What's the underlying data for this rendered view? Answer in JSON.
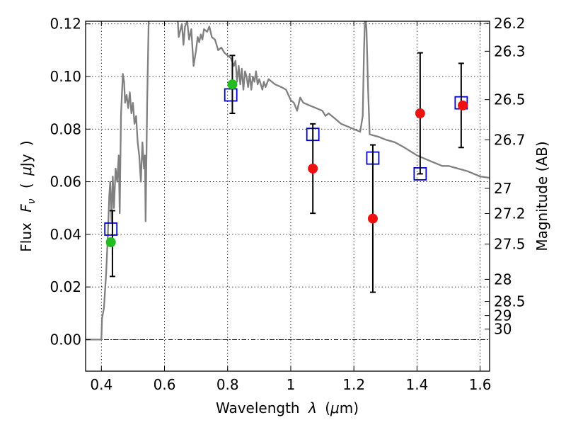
{
  "chart_data": {
    "type": "scatter",
    "xlabel_text": "Wavelength",
    "xlabel_symbol": "λ",
    "xlabel_unit_open": "(",
    "xlabel_unit_mu": "μ",
    "xlabel_unit_rest": "m)",
    "ylabel_prefix": "Flux",
    "ylabel_symbol": "F",
    "ylabel_subscript": "ν",
    "ylabel_open": "(",
    "ylabel_mu": "μ",
    "ylabel_unit": "Jy",
    "ylabel_close": ")",
    "y2label": "Magnitude (AB)",
    "xlim": [
      0.35,
      1.63
    ],
    "ylim": [
      -0.012,
      0.121
    ],
    "x_ticks": [
      {
        "value": 0.4,
        "label": "0.4"
      },
      {
        "value": 0.6,
        "label": "0.6"
      },
      {
        "value": 0.8,
        "label": "0.8"
      },
      {
        "value": 1.0,
        "label": "1"
      },
      {
        "value": 1.2,
        "label": "1.2"
      },
      {
        "value": 1.4,
        "label": "1.4"
      },
      {
        "value": 1.6,
        "label": "1.6"
      }
    ],
    "y_ticks": [
      {
        "value": 0.0,
        "label": "0.00"
      },
      {
        "value": 0.02,
        "label": "0.02"
      },
      {
        "value": 0.04,
        "label": "0.04"
      },
      {
        "value": 0.06,
        "label": "0.06"
      },
      {
        "value": 0.08,
        "label": "0.08"
      },
      {
        "value": 0.1,
        "label": "0.10"
      },
      {
        "value": 0.12,
        "label": "0.12"
      }
    ],
    "y2_ticks": [
      {
        "flux": 0.1202,
        "label": "26.2"
      },
      {
        "flux": 0.1096,
        "label": "26.3"
      },
      {
        "flux": 0.0912,
        "label": "26.5"
      },
      {
        "flux": 0.0759,
        "label": "26.7"
      },
      {
        "flux": 0.0575,
        "label": "27"
      },
      {
        "flux": 0.0479,
        "label": "27.2"
      },
      {
        "flux": 0.0363,
        "label": "27.5"
      },
      {
        "flux": 0.0229,
        "label": "28"
      },
      {
        "flux": 0.0145,
        "label": "28.5"
      },
      {
        "flux": 0.0091,
        "label": "29"
      },
      {
        "flux": 0.004,
        "label": "30"
      }
    ],
    "grid": true,
    "series": [
      {
        "kind": "line",
        "color": "#808080",
        "points": [
          [
            0.35,
            0.0
          ],
          [
            0.4,
            0.0
          ],
          [
            0.402,
            0.008
          ],
          [
            0.408,
            0.012
          ],
          [
            0.415,
            0.025
          ],
          [
            0.42,
            0.038
          ],
          [
            0.425,
            0.055
          ],
          [
            0.428,
            0.06
          ],
          [
            0.432,
            0.045
          ],
          [
            0.436,
            0.062
          ],
          [
            0.44,
            0.05
          ],
          [
            0.445,
            0.065
          ],
          [
            0.45,
            0.06
          ],
          [
            0.455,
            0.07
          ],
          [
            0.458,
            0.048
          ],
          [
            0.462,
            0.085
          ],
          [
            0.468,
            0.101
          ],
          [
            0.472,
            0.098
          ],
          [
            0.475,
            0.09
          ],
          [
            0.48,
            0.093
          ],
          [
            0.485,
            0.088
          ],
          [
            0.49,
            0.094
          ],
          [
            0.495,
            0.086
          ],
          [
            0.5,
            0.09
          ],
          [
            0.505,
            0.082
          ],
          [
            0.51,
            0.085
          ],
          [
            0.515,
            0.075
          ],
          [
            0.52,
            0.07
          ],
          [
            0.525,
            0.06
          ],
          [
            0.53,
            0.075
          ],
          [
            0.535,
            0.065
          ],
          [
            0.538,
            0.07
          ],
          [
            0.54,
            0.045
          ],
          [
            0.545,
            0.09
          ],
          [
            0.55,
            0.122
          ],
          [
            0.6,
            0.128
          ],
          [
            0.64,
            0.125
          ],
          [
            0.645,
            0.115
          ],
          [
            0.655,
            0.12
          ],
          [
            0.66,
            0.112
          ],
          [
            0.665,
            0.119
          ],
          [
            0.672,
            0.121
          ],
          [
            0.678,
            0.114
          ],
          [
            0.685,
            0.118
          ],
          [
            0.692,
            0.104
          ],
          [
            0.7,
            0.11
          ],
          [
            0.705,
            0.115
          ],
          [
            0.71,
            0.113
          ],
          [
            0.715,
            0.116
          ],
          [
            0.72,
            0.114
          ],
          [
            0.725,
            0.118
          ],
          [
            0.735,
            0.117
          ],
          [
            0.742,
            0.119
          ],
          [
            0.75,
            0.115
          ],
          [
            0.76,
            0.114
          ],
          [
            0.77,
            0.11
          ],
          [
            0.78,
            0.111
          ],
          [
            0.79,
            0.109
          ],
          [
            0.8,
            0.108
          ],
          [
            0.81,
            0.107
          ],
          [
            0.82,
            0.104
          ],
          [
            0.825,
            0.106
          ],
          [
            0.83,
            0.098
          ],
          [
            0.835,
            0.104
          ],
          [
            0.84,
            0.097
          ],
          [
            0.845,
            0.103
          ],
          [
            0.85,
            0.095
          ],
          [
            0.855,
            0.102
          ],
          [
            0.86,
            0.1
          ],
          [
            0.865,
            0.096
          ],
          [
            0.87,
            0.101
          ],
          [
            0.875,
            0.095
          ],
          [
            0.88,
            0.1
          ],
          [
            0.885,
            0.098
          ],
          [
            0.89,
            0.102
          ],
          [
            0.895,
            0.097
          ],
          [
            0.9,
            0.099
          ],
          [
            0.91,
            0.095
          ],
          [
            0.915,
            0.098
          ],
          [
            0.92,
            0.096
          ],
          [
            0.93,
            0.099
          ],
          [
            0.95,
            0.097
          ],
          [
            0.97,
            0.096
          ],
          [
            0.985,
            0.095
          ],
          [
            1.0,
            0.091
          ],
          [
            1.01,
            0.09
          ],
          [
            1.02,
            0.087
          ],
          [
            1.03,
            0.092
          ],
          [
            1.04,
            0.09
          ],
          [
            1.06,
            0.089
          ],
          [
            1.08,
            0.088
          ],
          [
            1.1,
            0.087
          ],
          [
            1.11,
            0.085
          ],
          [
            1.12,
            0.086
          ],
          [
            1.14,
            0.084
          ],
          [
            1.16,
            0.082
          ],
          [
            1.18,
            0.081
          ],
          [
            1.2,
            0.08
          ],
          [
            1.22,
            0.079
          ],
          [
            1.228,
            0.085
          ],
          [
            1.232,
            0.11
          ],
          [
            1.236,
            0.125
          ],
          [
            1.24,
            0.118
          ],
          [
            1.245,
            0.095
          ],
          [
            1.25,
            0.078
          ],
          [
            1.28,
            0.077
          ],
          [
            1.3,
            0.076
          ],
          [
            1.33,
            0.075
          ],
          [
            1.36,
            0.073
          ],
          [
            1.4,
            0.07
          ],
          [
            1.44,
            0.068
          ],
          [
            1.48,
            0.066
          ],
          [
            1.5,
            0.066
          ],
          [
            1.53,
            0.065
          ],
          [
            1.56,
            0.064
          ],
          [
            1.58,
            0.063
          ],
          [
            1.6,
            0.062
          ],
          [
            1.63,
            0.0615
          ]
        ]
      },
      {
        "kind": "points",
        "marker": "square",
        "color": "#0000c8",
        "points": [
          [
            0.43,
            0.042
          ],
          [
            0.81,
            0.093
          ],
          [
            1.07,
            0.078
          ],
          [
            1.26,
            0.069
          ],
          [
            1.41,
            0.063
          ],
          [
            1.54,
            0.09
          ]
        ]
      },
      {
        "kind": "points",
        "marker": "circle",
        "color": "#22bb22",
        "points": [
          [
            0.43,
            0.037
          ],
          [
            0.815,
            0.097
          ]
        ]
      },
      {
        "kind": "points",
        "marker": "circle",
        "color": "#ee1111",
        "points": [
          [
            1.07,
            0.065
          ],
          [
            1.26,
            0.046
          ],
          [
            1.41,
            0.086
          ],
          [
            1.545,
            0.089
          ]
        ]
      },
      {
        "kind": "errorbars",
        "color": "#000000",
        "bars": [
          {
            "x": 0.435,
            "low": 0.024,
            "high": 0.049
          },
          {
            "x": 0.815,
            "low": 0.086,
            "high": 0.108
          },
          {
            "x": 1.07,
            "low": 0.048,
            "high": 0.082
          },
          {
            "x": 1.26,
            "low": 0.018,
            "high": 0.074
          },
          {
            "x": 1.41,
            "low": 0.063,
            "high": 0.109
          },
          {
            "x": 1.54,
            "low": 0.073,
            "high": 0.105
          }
        ]
      }
    ]
  }
}
